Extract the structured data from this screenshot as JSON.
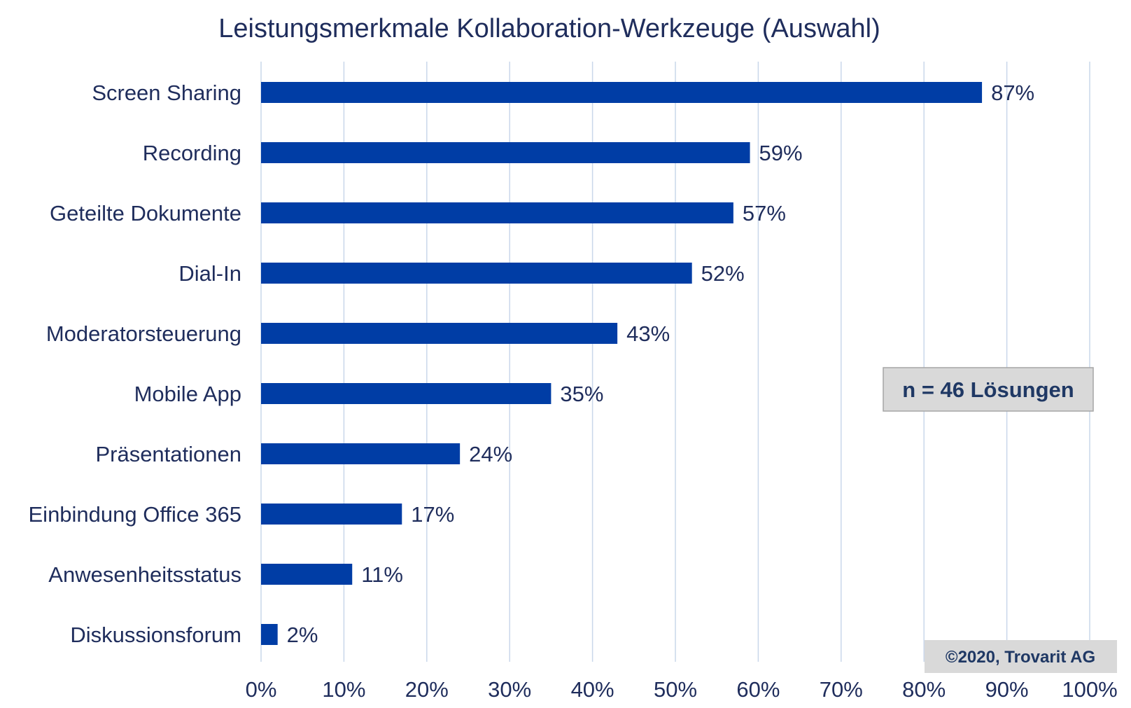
{
  "chart_data": {
    "type": "bar",
    "orientation": "horizontal",
    "title": "Leistungsmerkmale Kollaboration-Werkzeuge (Auswahl)",
    "xlabel": "",
    "ylabel": "",
    "categories": [
      "Screen Sharing",
      "Recording",
      "Geteilte Dokumente",
      "Dial-In",
      "Moderatorsteuerung",
      "Mobile App",
      "Präsentationen",
      "Einbindung Office 365",
      "Anwesenheitsstatus",
      "Diskussionsforum"
    ],
    "values": [
      87,
      59,
      57,
      52,
      43,
      35,
      24,
      17,
      11,
      2
    ],
    "value_labels": [
      "87%",
      "59%",
      "57%",
      "52%",
      "43%",
      "35%",
      "24%",
      "17%",
      "11%",
      "2%"
    ],
    "xlim": [
      0,
      100
    ],
    "x_ticks": [
      "0%",
      "10%",
      "20%",
      "30%",
      "40%",
      "50%",
      "60%",
      "70%",
      "80%",
      "90%",
      "100%"
    ],
    "grid": "vertical",
    "bar_color": "#003da5",
    "grid_color": "#c9d7ea",
    "text_color": "#1f2d5c",
    "annotations": {
      "sample_size": "n = 46 Lösungen",
      "copyright": "©2020, Trovarit AG"
    }
  }
}
